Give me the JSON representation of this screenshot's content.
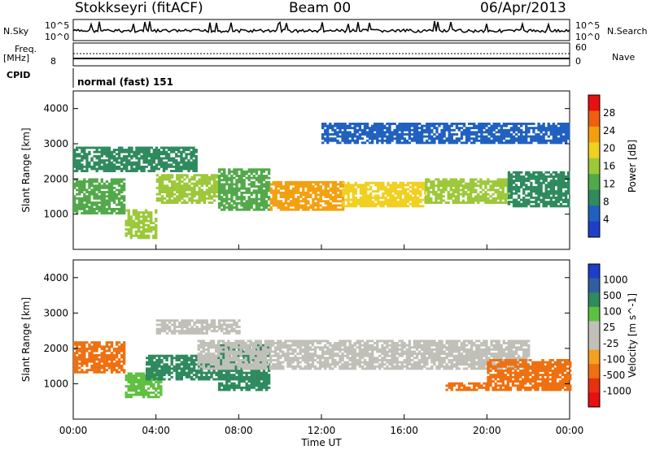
{
  "header": {
    "title": "Stokkseyri (fitACF)",
    "beam": "Beam 00",
    "date": "06/Apr/2013"
  },
  "side_labels": {
    "nsky": "N.Sky",
    "nsearch": "N.Search",
    "freq": "Freq.",
    "mhz": "[MHz]",
    "cpid": "CPID",
    "nave": "Nave",
    "noise_tick_top_left": "10^5",
    "noise_tick_bottom_left": "10^0",
    "noise_tick_top_right": "10^5",
    "noise_tick_bottom_right": "10^0",
    "freq_tick_top_right": "60",
    "freq_tick_bottom_right": "0",
    "freq_tick_left": "8"
  },
  "mode_label": "normal (fast) 151",
  "colors": {
    "power_scale": [
      "#1f3ec8",
      "#2060c0",
      "#2f8a5e",
      "#52a94a",
      "#9cc83a",
      "#f0d020",
      "#f3a010",
      "#ee6010",
      "#e81010"
    ],
    "velocity_scale": [
      "#1f3ec8",
      "#2f5fa0",
      "#2f8a5e",
      "#5fc040",
      "#c0c0b8",
      "#c0c0b8",
      "#f5a020",
      "#ee7010",
      "#e83010",
      "#e81010"
    ]
  },
  "chart_data": [
    {
      "type": "heatmap",
      "panel": "power",
      "ylabel": "Slant Range [km]",
      "yticks": [
        "1000",
        "2000",
        "3000",
        "4000"
      ],
      "ylim": [
        0,
        4500
      ],
      "xticks": [
        "00:00",
        "04:00",
        "08:00",
        "12:00",
        "16:00",
        "20:00",
        "00:00"
      ],
      "xlim_hours": [
        0,
        24
      ],
      "colorbar_label": "Power [dB]",
      "colorbar_ticks": [
        "4",
        "8",
        "12",
        "16",
        "20",
        "24",
        "28"
      ],
      "colorbar_range": [
        0,
        32
      ],
      "bands": [
        {
          "t0": 0.0,
          "t1": 2.5,
          "r0": 1000,
          "r1": 2000,
          "level": 14
        },
        {
          "t0": 2.5,
          "t1": 4.0,
          "r0": 300,
          "r1": 1100,
          "level": 18
        },
        {
          "t0": 4.0,
          "t1": 7.0,
          "r0": 1300,
          "r1": 2100,
          "level": 18
        },
        {
          "t0": 7.0,
          "t1": 9.5,
          "r0": 1100,
          "r1": 2300,
          "level": 14
        },
        {
          "t0": 9.5,
          "t1": 13.0,
          "r0": 1100,
          "r1": 1900,
          "level": 24
        },
        {
          "t0": 13.0,
          "t1": 17.0,
          "r0": 1200,
          "r1": 1900,
          "level": 22
        },
        {
          "t0": 17.0,
          "t1": 21.0,
          "r0": 1300,
          "r1": 2000,
          "level": 18
        },
        {
          "t0": 21.0,
          "t1": 24.0,
          "r0": 1200,
          "r1": 2200,
          "level": 10
        },
        {
          "t0": 0.0,
          "t1": 6.0,
          "r0": 2200,
          "r1": 2900,
          "level": 8
        },
        {
          "t0": 12.0,
          "t1": 24.0,
          "r0": 3000,
          "r1": 3600,
          "level": 6
        }
      ]
    },
    {
      "type": "heatmap",
      "panel": "velocity",
      "ylabel": "Slant Range [km]",
      "yticks": [
        "1000",
        "2000",
        "3000",
        "4000"
      ],
      "ylim": [
        0,
        4500
      ],
      "xticks": [
        "00:00",
        "04:00",
        "08:00",
        "12:00",
        "16:00",
        "20:00",
        "00:00"
      ],
      "xlabel": "Time UT",
      "xlim_hours": [
        0,
        24
      ],
      "colorbar_label": "Velocity [m s^-1]",
      "colorbar_ticks": [
        "1000",
        "500",
        "100",
        "25",
        "-25",
        "-100",
        "-500",
        "-1000"
      ],
      "bands": [
        {
          "t0": 0.0,
          "t1": 2.5,
          "r0": 1300,
          "r1": 2200,
          "velocity": -300
        },
        {
          "t0": 2.5,
          "t1": 4.2,
          "r0": 600,
          "r1": 1300,
          "velocity": 50
        },
        {
          "t0": 3.5,
          "t1": 7.5,
          "r0": 1100,
          "r1": 1800,
          "velocity": 400
        },
        {
          "t0": 7.0,
          "t1": 9.5,
          "r0": 800,
          "r1": 2100,
          "velocity": 150
        },
        {
          "t0": 6.0,
          "t1": 22.0,
          "r0": 1400,
          "r1": 2200,
          "velocity": 0
        },
        {
          "t0": 4.0,
          "t1": 8.0,
          "r0": 2400,
          "r1": 2800,
          "velocity": 0
        },
        {
          "t0": 20.0,
          "t1": 24.0,
          "r0": 800,
          "r1": 1700,
          "velocity": -400
        },
        {
          "t0": 18.0,
          "t1": 20.0,
          "r0": 800,
          "r1": 1000,
          "velocity": -200
        }
      ]
    }
  ],
  "axis_title_time": "Time UT"
}
